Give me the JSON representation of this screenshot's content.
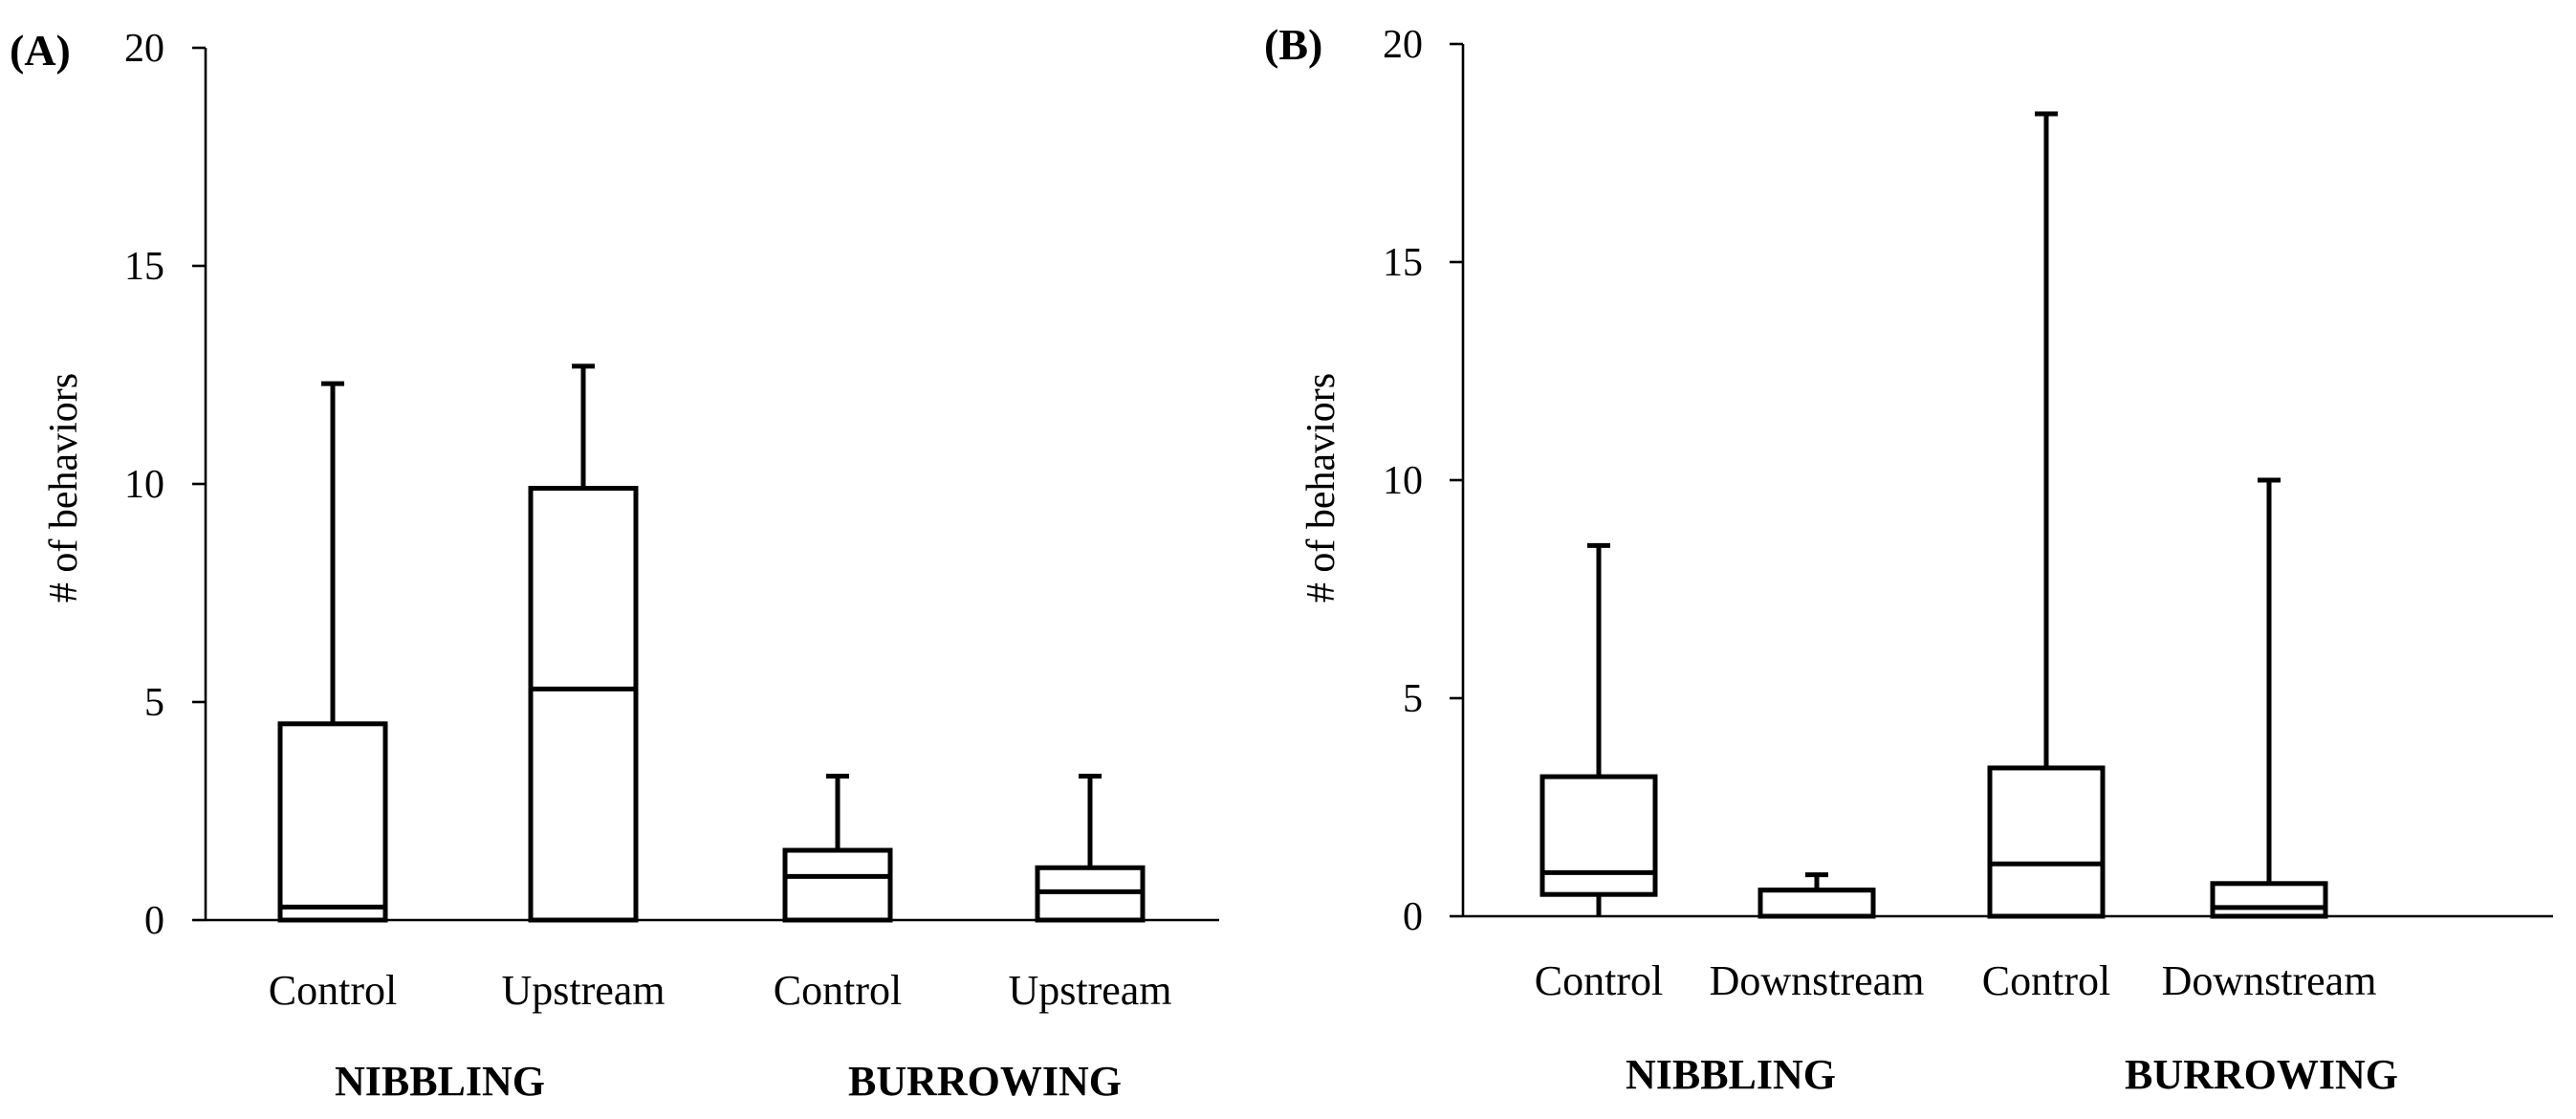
{
  "chart_data": [
    {
      "type": "boxplot",
      "panel_label": "(A)",
      "ylabel": "# of behaviors",
      "ylim": [
        0,
        20
      ],
      "yticks": [
        "0",
        "5",
        "10",
        "15",
        "20"
      ],
      "categories": [
        "Control",
        "Upstream",
        "Control",
        "Upstream"
      ],
      "groups": [
        "NIBBLING",
        "BURROWING"
      ],
      "boxes": [
        {
          "category": "Control",
          "group": "NIBBLING",
          "min": 0,
          "q1": 0,
          "median": 0.3,
          "q3": 4.5,
          "max": 12.3
        },
        {
          "category": "Upstream",
          "group": "NIBBLING",
          "min": 0,
          "q1": 0,
          "median": 5.3,
          "q3": 9.9,
          "max": 12.7
        },
        {
          "category": "Control",
          "group": "BURROWING",
          "min": 0,
          "q1": 0,
          "median": 1.0,
          "q3": 1.6,
          "max": 3.3
        },
        {
          "category": "Upstream",
          "group": "BURROWING",
          "min": 0,
          "q1": 0,
          "median": 0.65,
          "q3": 1.2,
          "max": 3.3
        }
      ]
    },
    {
      "type": "boxplot",
      "panel_label": "(B)",
      "ylabel": "# of behaviors",
      "ylim": [
        0,
        20
      ],
      "yticks": [
        "0",
        "5",
        "10",
        "15",
        "20"
      ],
      "categories": [
        "Control",
        "Downstream",
        "Control",
        "Downstream"
      ],
      "groups": [
        "NIBBLING",
        "BURROWING"
      ],
      "boxes": [
        {
          "category": "Control",
          "group": "NIBBLING",
          "min": 0,
          "q1": 0.5,
          "median": 1.0,
          "q3": 3.2,
          "max": 8.5
        },
        {
          "category": "Downstream",
          "group": "NIBBLING",
          "min": 0,
          "q1": 0,
          "median": 0.6,
          "q3": 0.6,
          "max": 0.95
        },
        {
          "category": "Control",
          "group": "BURROWING",
          "min": 0,
          "q1": 0,
          "median": 1.2,
          "q3": 3.4,
          "max": 18.4
        },
        {
          "category": "Downstream",
          "group": "BURROWING",
          "min": 0,
          "q1": 0,
          "median": 0.2,
          "q3": 0.75,
          "max": 10.0
        }
      ]
    }
  ]
}
